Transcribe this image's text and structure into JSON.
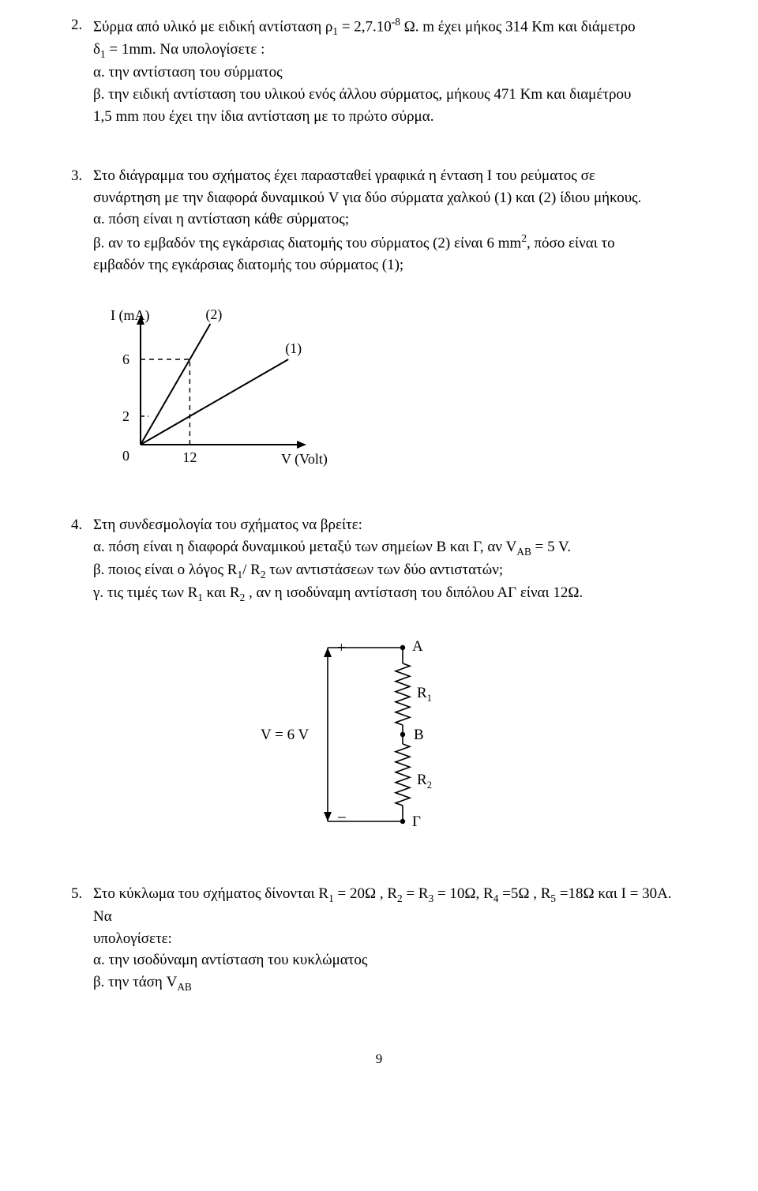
{
  "page_number": "9",
  "q2": {
    "num": "2.",
    "line1_a": "Σύρμα από υλικό με ειδική αντίσταση ρ",
    "line1_sub": "1",
    "line1_b": " = 2,7.10",
    "line1_sup": "-8",
    "line1_c": " Ω. m  έχει μήκος 314 Km και διάμετρο",
    "line2_a": "δ",
    "line2_sub": "1",
    "line2_b": " = 1mm. Να υπολογίσετε :",
    "sub_a": "α. την αντίσταση του σύρματος",
    "sub_b1": "β. την ειδική αντίσταση του υλικού ενός άλλου σύρματος, μήκους  471 Km και διαμέτρου",
    "sub_b2": "1,5 mm που έχει την ίδια αντίσταση με το πρώτο σύρμα."
  },
  "q3": {
    "num": "3.",
    "line1": "Στο διάγραμμα του σχήματος έχει παρασταθεί γραφικά η ένταση Ι του ρεύματος σε",
    "line2": "συνάρτηση με την διαφορά δυναμικού V για δύο σύρματα χαλκού (1) και (2) ίδιου μήκους.",
    "sub_a": "α. πόση είναι η αντίσταση κάθε σύρματος;",
    "sub_b1_a": "β. αν το εμβαδόν της εγκάρσιας διατομής του σύρματος (2) είναι 6 mm",
    "sub_b1_sup": "2",
    "sub_b1_b": ", πόσο είναι το",
    "sub_b2": "εμβαδόν της εγκάρσιας διατομής του σύρματος (1);",
    "chart": {
      "type": "line",
      "axis_color": "#000000",
      "line_color": "#000000",
      "dash_color": "#000000",
      "text_color": "#000000",
      "font_size": 18,
      "y_label": "I (mA)",
      "x_label": "V (Volt)",
      "y_ticks": [
        "6",
        "2"
      ],
      "x_ticks": [
        "0",
        "12"
      ],
      "series_labels": [
        "(2)",
        "(1)"
      ],
      "point_x": 12,
      "point_y_series2": 6,
      "point_y_series1": 2,
      "xmax": 40,
      "ymax": 9
    }
  },
  "q4": {
    "num": "4.",
    "line1": "Στη συνδεσμολογία του σχήματος να βρείτε:",
    "sub_a_a": "α. πόση είναι η διαφορά δυναμικού μεταξύ των σημείων Β και Γ, αν V",
    "sub_a_sub": "AB",
    "sub_a_b": " = 5 V.",
    "sub_b_a": "β. ποιος είναι ο λόγος R",
    "sub_b_sub1": "1",
    "sub_b_b": "/ R",
    "sub_b_sub2": "2",
    "sub_b_c": " των αντιστάσεων των δύο αντιστατών;",
    "sub_c_a": "γ. τις τιμές των R",
    "sub_c_sub1": "1",
    "sub_c_b": " και R",
    "sub_c_sub2": "2",
    "sub_c_c": " , αν η ισοδύναμη αντίσταση του διπόλου ΑΓ είναι 12Ω.",
    "circuit": {
      "line_color": "#000000",
      "text_color": "#000000",
      "font_size": 19,
      "plus": "+",
      "minus": "−",
      "v_label": "V = 6 V",
      "node_a": "A",
      "node_b": "B",
      "node_g": "Γ",
      "r1": "R",
      "r1_sub": "1",
      "r2": "R",
      "r2_sub": "2"
    }
  },
  "q5": {
    "num": "5.",
    "line1_a": "Στο κύκλωμα του σχήματος δίνονται R",
    "line1_s1": "1",
    "line1_b": " = 20Ω , R",
    "line1_s2": "2",
    "line1_c": " = R",
    "line1_s3": "3",
    "line1_d": " = 10Ω, R",
    "line1_s4": "4",
    "line1_e": " =5Ω , R",
    "line1_s5": "5",
    "line1_f": " =18Ω και Ι = 30Α. Να",
    "line2": "υπολογίσετε:",
    "sub_a": "α. την ισοδύναμη αντίσταση του κυκλώματος",
    "sub_b_a": "β. την τάση  V",
    "sub_b_sub": "AB"
  }
}
